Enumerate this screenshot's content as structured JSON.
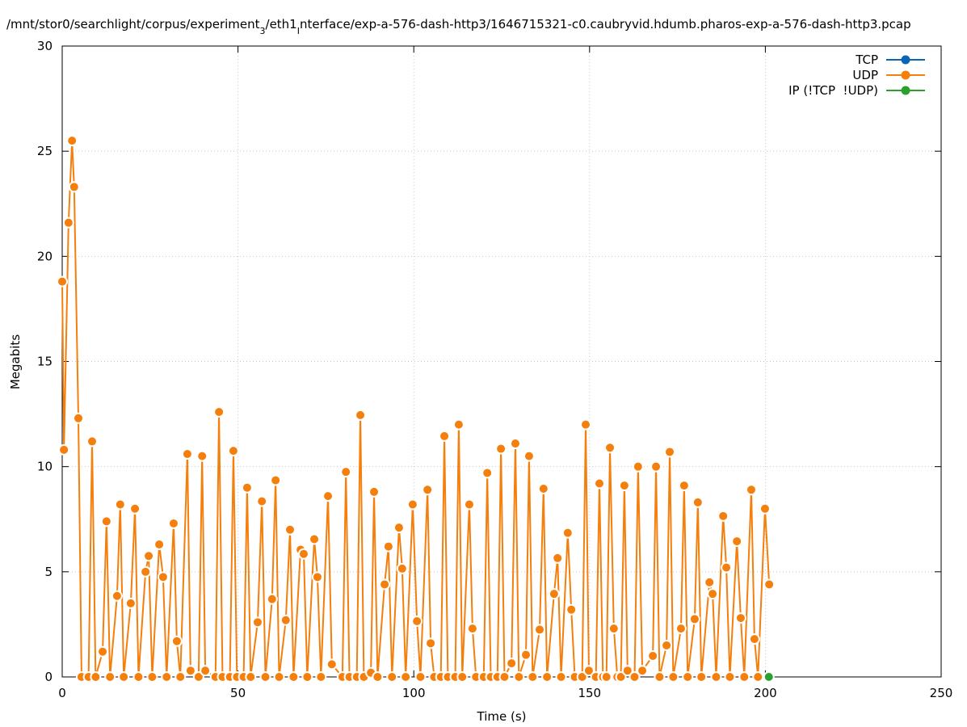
{
  "chart_data": {
    "type": "line",
    "title": [
      "/mnt/stor0/searchlight/corpus/experiment",
      "3",
      "/eth1",
      "I",
      "nterface/exp-a-576-dash-http3/1646715321-c0.caubryvid.hdumb.pharos-exp-a-576-dash-http3.pcap"
    ],
    "x_label": "Time (s)",
    "y_label": "Megabits",
    "xlim": [
      0,
      250
    ],
    "xticks": [
      0,
      50,
      100,
      150,
      200,
      250
    ],
    "ylim": [
      0,
      30
    ],
    "yticks": [
      0,
      5,
      10,
      15,
      20,
      25,
      30
    ],
    "grid": true,
    "legend": "top-right",
    "series": [
      {
        "name": "TCP",
        "color": "#0a64b4",
        "x": [],
        "values": []
      },
      {
        "name": "UDP",
        "color": "#f57f0c",
        "x": [
          0,
          0.5,
          1.8,
          2.8,
          3.4,
          4.6,
          5.5,
          7.5,
          8.5,
          9.5,
          11.5,
          12.6,
          13.6,
          15.6,
          16.5,
          17.5,
          19.5,
          20.7,
          21.7,
          23.7,
          24.6,
          25.6,
          27.6,
          28.7,
          29.7,
          31.7,
          32.6,
          33.6,
          35.6,
          36.5,
          38.8,
          39.8,
          40.7,
          43.6,
          44.6,
          45.6,
          47.7,
          48.7,
          49.7,
          51.6,
          52.6,
          53.6,
          55.6,
          56.8,
          57.8,
          59.7,
          60.7,
          61.7,
          63.6,
          64.8,
          65.8,
          67.8,
          68.7,
          69.7,
          71.7,
          72.6,
          73.6,
          75.6,
          76.7,
          79.7,
          80.7,
          81.7,
          83.8,
          84.8,
          85.8,
          87.8,
          88.7,
          89.7,
          91.7,
          92.8,
          93.8,
          95.8,
          96.7,
          97.7,
          99.7,
          100.9,
          101.9,
          103.9,
          104.8,
          105.8,
          107.7,
          108.7,
          109.7,
          111.8,
          112.8,
          113.8,
          115.8,
          116.7,
          117.7,
          119.9,
          120.9,
          121.9,
          123.8,
          124.8,
          125.8,
          127.8,
          128.9,
          129.9,
          131.9,
          132.8,
          133.8,
          135.8,
          136.9,
          137.9,
          139.9,
          140.9,
          141.9,
          143.8,
          144.8,
          145.8,
          147.9,
          148.9,
          149.8,
          151.8,
          152.8,
          153.8,
          154.8,
          155.8,
          156.9,
          157.9,
          158.9,
          159.9,
          160.8,
          162.8,
          163.8,
          165.0,
          168.0,
          168.9,
          169.9,
          171.9,
          172.8,
          173.8,
          176.0,
          176.9,
          177.9,
          179.9,
          180.8,
          181.8,
          184.1,
          185.0,
          186.0,
          188.0,
          188.9,
          189.9,
          191.9,
          193.0,
          194.0,
          196.0,
          196.9,
          197.9,
          199.9,
          201.1
        ],
        "values": [
          18.8,
          10.8,
          21.6,
          25.5,
          23.3,
          12.3,
          0,
          0,
          11.2,
          0,
          1.2,
          7.4,
          0,
          3.85,
          8.2,
          0,
          3.5,
          8.0,
          0,
          5.0,
          5.75,
          0,
          6.3,
          4.75,
          0,
          7.3,
          1.7,
          0,
          10.6,
          0.3,
          0,
          10.5,
          0.3,
          0,
          12.6,
          0,
          0,
          10.75,
          0,
          0,
          9.0,
          0,
          2.6,
          8.35,
          0,
          3.7,
          9.35,
          0,
          2.7,
          7.0,
          0,
          6.05,
          5.85,
          0,
          6.55,
          4.75,
          0,
          8.6,
          0.6,
          0,
          9.75,
          0,
          0,
          12.45,
          0,
          0.2,
          8.8,
          0,
          4.4,
          6.2,
          0,
          7.1,
          5.15,
          0,
          8.2,
          2.65,
          0,
          8.9,
          1.6,
          0,
          0,
          11.45,
          0,
          0,
          12.0,
          0,
          8.2,
          2.3,
          0,
          0,
          9.7,
          0,
          0,
          10.85,
          0,
          0.65,
          11.1,
          0,
          1.05,
          10.5,
          0,
          2.25,
          8.95,
          0,
          3.95,
          5.65,
          0,
          6.85,
          3.2,
          0,
          0,
          12.0,
          0.3,
          0,
          9.2,
          0,
          0,
          10.9,
          2.3,
          0,
          0,
          9.1,
          0.3,
          0,
          10.0,
          0.3,
          1.0,
          10.0,
          0,
          1.5,
          10.7,
          0,
          2.3,
          9.1,
          0,
          2.75,
          8.3,
          0,
          4.5,
          3.95,
          0,
          7.65,
          5.2,
          0,
          6.45,
          2.8,
          0,
          8.9,
          1.8,
          0,
          8.0,
          4.4
        ]
      },
      {
        "name": "IP (!TCP  !UDP)",
        "color": "#2ca02c",
        "x": [
          201
        ],
        "values": [
          0
        ]
      }
    ]
  }
}
